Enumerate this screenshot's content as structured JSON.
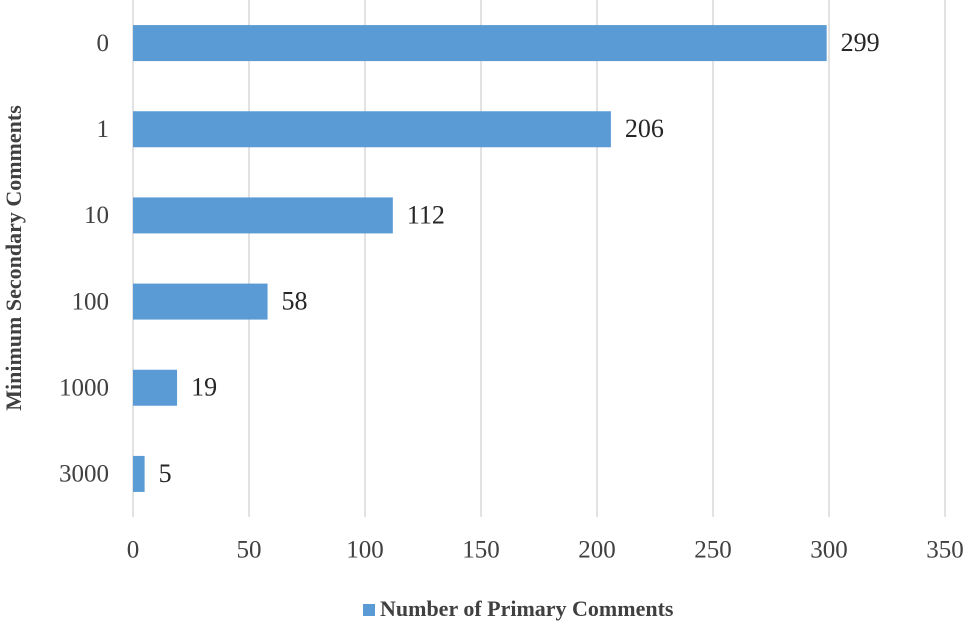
{
  "chart_data": {
    "type": "bar",
    "orientation": "horizontal",
    "y_label": "Minimum Secondary Comments",
    "categories": [
      "0",
      "1",
      "10",
      "100",
      "1000",
      "3000"
    ],
    "series": [
      {
        "name": "Number of Primary Comments",
        "color": "#5b9bd5",
        "values": [
          299,
          206,
          112,
          58,
          19,
          5
        ]
      }
    ],
    "xlim": [
      0,
      350
    ],
    "xticks": [
      0,
      50,
      100,
      150,
      200,
      250,
      300,
      350
    ],
    "grid": true,
    "legend": "bottom",
    "data_labels": true
  }
}
